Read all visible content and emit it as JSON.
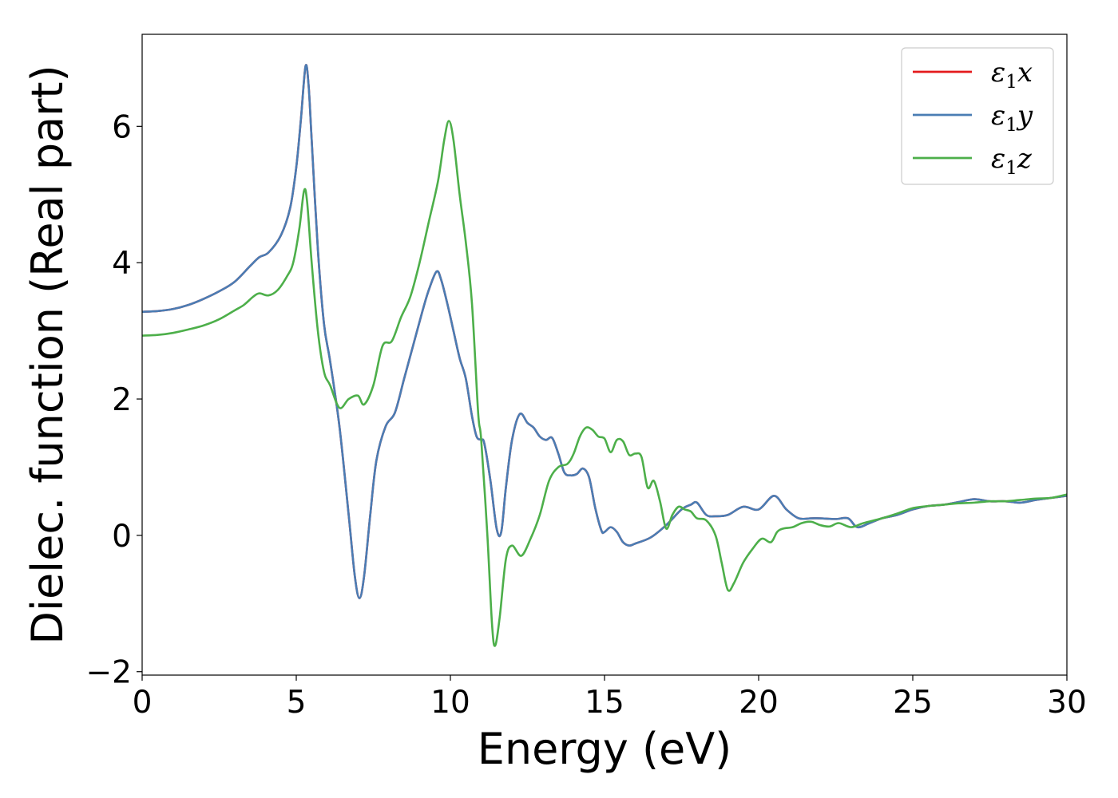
{
  "chart_data": {
    "type": "line",
    "xlabel": "Energy (eV)",
    "ylabel": "Dielec. function (Real part)",
    "xlim": [
      0,
      30
    ],
    "ylim": [
      -2.05,
      7.35
    ],
    "xticks": [
      0,
      5,
      10,
      15,
      20,
      25,
      30
    ],
    "xtick_labels": [
      "0",
      "5",
      "10",
      "15",
      "20",
      "25",
      "30"
    ],
    "yticks": [
      -2,
      0,
      2,
      4,
      6
    ],
    "ytick_labels": [
      "−2",
      "0",
      "2",
      "4",
      "6"
    ],
    "grid": false,
    "legend_position": "top-right",
    "series": [
      {
        "name": "ε₁x",
        "label_main": "ε",
        "label_sub": "1",
        "label_var": "x",
        "color": "#e41a1c",
        "x": [
          0,
          0.5,
          1,
          1.5,
          2,
          2.5,
          3,
          3.5,
          3.8,
          4.1,
          4.5,
          4.8,
          5.0,
          5.15,
          5.3,
          5.4,
          5.5,
          5.7,
          5.9,
          6.1,
          6.4,
          6.7,
          6.9,
          7.05,
          7.2,
          7.4,
          7.6,
          7.9,
          8.2,
          8.5,
          8.8,
          9.1,
          9.3,
          9.55,
          9.7,
          9.9,
          10.1,
          10.3,
          10.5,
          10.7,
          10.85,
          11.0,
          11.1,
          11.3,
          11.5,
          11.65,
          11.8,
          12.0,
          12.25,
          12.5,
          12.7,
          12.9,
          13.1,
          13.3,
          13.5,
          13.7,
          13.9,
          14.1,
          14.3,
          14.5,
          14.7,
          14.9,
          15.0,
          15.2,
          15.4,
          15.6,
          15.8,
          16.0,
          16.5,
          17.0,
          17.5,
          17.8,
          18.0,
          18.3,
          18.6,
          19.0,
          19.5,
          20.0,
          20.5,
          20.9,
          21.3,
          21.7,
          22.0,
          22.5,
          22.9,
          23.2,
          23.6,
          24.0,
          24.5,
          25.0,
          25.5,
          26.0,
          26.5,
          27.0,
          27.5,
          28.0,
          28.5,
          29.0,
          29.5,
          30.0
        ],
        "y": [
          3.28,
          3.29,
          3.32,
          3.38,
          3.47,
          3.58,
          3.72,
          3.95,
          4.08,
          4.15,
          4.4,
          4.8,
          5.4,
          6.1,
          6.88,
          6.6,
          5.8,
          4.2,
          3.1,
          2.55,
          1.6,
          0.3,
          -0.6,
          -0.92,
          -0.6,
          0.3,
          1.1,
          1.6,
          1.8,
          2.3,
          2.8,
          3.3,
          3.6,
          3.87,
          3.75,
          3.4,
          3.0,
          2.6,
          2.3,
          1.75,
          1.45,
          1.4,
          1.35,
          0.8,
          0.1,
          0.05,
          0.7,
          1.4,
          1.78,
          1.65,
          1.58,
          1.45,
          1.4,
          1.43,
          1.2,
          0.92,
          0.88,
          0.9,
          0.98,
          0.85,
          0.4,
          0.07,
          0.05,
          0.12,
          0.05,
          -0.1,
          -0.15,
          -0.12,
          -0.03,
          0.15,
          0.38,
          0.45,
          0.48,
          0.3,
          0.28,
          0.3,
          0.42,
          0.38,
          0.58,
          0.38,
          0.25,
          0.25,
          0.25,
          0.24,
          0.25,
          0.12,
          0.18,
          0.25,
          0.3,
          0.38,
          0.43,
          0.45,
          0.49,
          0.53,
          0.5,
          0.5,
          0.48,
          0.52,
          0.55,
          0.58
        ]
      },
      {
        "name": "ε₁y",
        "label_main": "ε",
        "label_sub": "1",
        "label_var": "y",
        "color": "#4a7db4",
        "x": [
          0,
          0.5,
          1,
          1.5,
          2,
          2.5,
          3,
          3.5,
          3.8,
          4.1,
          4.5,
          4.8,
          5.0,
          5.15,
          5.3,
          5.4,
          5.5,
          5.7,
          5.9,
          6.1,
          6.4,
          6.7,
          6.9,
          7.05,
          7.2,
          7.4,
          7.6,
          7.9,
          8.2,
          8.5,
          8.8,
          9.1,
          9.3,
          9.55,
          9.7,
          9.9,
          10.1,
          10.3,
          10.5,
          10.7,
          10.85,
          11.0,
          11.1,
          11.3,
          11.5,
          11.65,
          11.8,
          12.0,
          12.25,
          12.5,
          12.7,
          12.9,
          13.1,
          13.3,
          13.5,
          13.7,
          13.9,
          14.1,
          14.3,
          14.5,
          14.7,
          14.9,
          15.0,
          15.2,
          15.4,
          15.6,
          15.8,
          16.0,
          16.5,
          17.0,
          17.5,
          17.8,
          18.0,
          18.3,
          18.6,
          19.0,
          19.5,
          20.0,
          20.5,
          20.9,
          21.3,
          21.7,
          22.0,
          22.5,
          22.9,
          23.2,
          23.6,
          24.0,
          24.5,
          25.0,
          25.5,
          26.0,
          26.5,
          27.0,
          27.5,
          28.0,
          28.5,
          29.0,
          29.5,
          30.0
        ],
        "y": [
          3.28,
          3.29,
          3.32,
          3.38,
          3.47,
          3.58,
          3.72,
          3.95,
          4.08,
          4.15,
          4.4,
          4.8,
          5.4,
          6.1,
          6.88,
          6.6,
          5.8,
          4.2,
          3.1,
          2.55,
          1.6,
          0.3,
          -0.6,
          -0.92,
          -0.6,
          0.3,
          1.1,
          1.6,
          1.8,
          2.3,
          2.8,
          3.3,
          3.6,
          3.87,
          3.75,
          3.4,
          3.0,
          2.6,
          2.3,
          1.75,
          1.45,
          1.4,
          1.35,
          0.8,
          0.1,
          0.05,
          0.7,
          1.4,
          1.78,
          1.65,
          1.58,
          1.45,
          1.4,
          1.43,
          1.2,
          0.92,
          0.88,
          0.9,
          0.98,
          0.85,
          0.4,
          0.07,
          0.05,
          0.12,
          0.05,
          -0.1,
          -0.15,
          -0.12,
          -0.03,
          0.15,
          0.38,
          0.45,
          0.48,
          0.3,
          0.28,
          0.3,
          0.42,
          0.38,
          0.58,
          0.38,
          0.25,
          0.25,
          0.25,
          0.24,
          0.25,
          0.12,
          0.18,
          0.25,
          0.3,
          0.38,
          0.43,
          0.45,
          0.49,
          0.53,
          0.5,
          0.5,
          0.48,
          0.52,
          0.55,
          0.58
        ]
      },
      {
        "name": "ε₁z",
        "label_main": "ε",
        "label_sub": "1",
        "label_var": "z",
        "color": "#4daf4a",
        "x": [
          0,
          0.5,
          1,
          1.5,
          2,
          2.5,
          3,
          3.3,
          3.6,
          3.8,
          4.1,
          4.4,
          4.7,
          4.9,
          5.1,
          5.25,
          5.35,
          5.5,
          5.7,
          5.9,
          6.1,
          6.4,
          6.7,
          7.0,
          7.2,
          7.5,
          7.8,
          8.1,
          8.4,
          8.7,
          9.0,
          9.3,
          9.6,
          9.8,
          9.95,
          10.1,
          10.3,
          10.5,
          10.7,
          10.9,
          11.0,
          11.2,
          11.35,
          11.45,
          11.6,
          11.8,
          12.0,
          12.3,
          12.6,
          12.9,
          13.2,
          13.5,
          13.8,
          14.0,
          14.2,
          14.4,
          14.6,
          14.8,
          15.0,
          15.2,
          15.4,
          15.6,
          15.8,
          16.0,
          16.2,
          16.4,
          16.6,
          16.8,
          17.0,
          17.2,
          17.4,
          17.6,
          17.8,
          18.0,
          18.3,
          18.6,
          18.8,
          19.0,
          19.2,
          19.5,
          19.8,
          20.1,
          20.4,
          20.6,
          20.8,
          21.1,
          21.4,
          21.7,
          22.0,
          22.3,
          22.6,
          23.0,
          23.4,
          24.0,
          24.5,
          25.0,
          25.5,
          26.0,
          26.5,
          27.0,
          27.5,
          28.0,
          28.5,
          29.0,
          29.5,
          30.0
        ],
        "y": [
          2.93,
          2.94,
          2.97,
          3.02,
          3.08,
          3.17,
          3.3,
          3.38,
          3.5,
          3.55,
          3.52,
          3.6,
          3.8,
          4.0,
          4.5,
          5.05,
          4.9,
          4.0,
          3.0,
          2.4,
          2.2,
          1.87,
          2.0,
          2.05,
          1.92,
          2.2,
          2.78,
          2.85,
          3.2,
          3.5,
          4.0,
          4.6,
          5.2,
          5.8,
          6.08,
          5.8,
          5.0,
          4.3,
          3.4,
          1.8,
          1.4,
          0.0,
          -1.3,
          -1.62,
          -1.2,
          -0.35,
          -0.15,
          -0.3,
          -0.05,
          0.3,
          0.8,
          1.0,
          1.05,
          1.2,
          1.45,
          1.58,
          1.55,
          1.45,
          1.42,
          1.22,
          1.4,
          1.38,
          1.18,
          1.2,
          1.15,
          0.7,
          0.8,
          0.5,
          0.1,
          0.3,
          0.42,
          0.38,
          0.35,
          0.25,
          0.22,
          0.0,
          -0.4,
          -0.8,
          -0.7,
          -0.4,
          -0.2,
          -0.05,
          -0.1,
          0.05,
          0.1,
          0.12,
          0.18,
          0.2,
          0.15,
          0.13,
          0.18,
          0.12,
          0.18,
          0.25,
          0.32,
          0.4,
          0.43,
          0.45,
          0.47,
          0.48,
          0.5,
          0.5,
          0.52,
          0.54,
          0.55,
          0.6
        ]
      }
    ]
  }
}
